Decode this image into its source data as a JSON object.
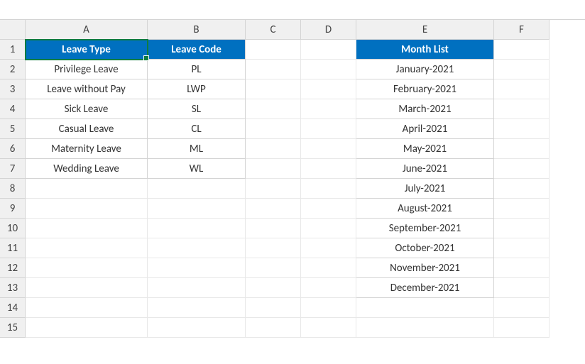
{
  "columns": [
    "A",
    "B",
    "C",
    "D",
    "E",
    "F"
  ],
  "rowCount": 15,
  "colors": {
    "headerBg": "#0070c0",
    "headerText": "#ffffff",
    "selectionBorder": "#107c41",
    "gridHeaderBg": "#f0f0f0",
    "gridBorder": "#d4d4d4",
    "cellBorder": "#e8e8e8"
  },
  "selectedCell": "A1",
  "headers": {
    "leaveType": "Leave Type",
    "leaveCode": "Leave Code",
    "monthList": "Month List"
  },
  "leaveTypes": [
    {
      "type": "Privilege Leave",
      "code": "PL"
    },
    {
      "type": "Leave without Pay",
      "code": "LWP"
    },
    {
      "type": "Sick Leave",
      "code": "SL"
    },
    {
      "type": "Casual Leave",
      "code": "CL"
    },
    {
      "type": "Maternity Leave",
      "code": "ML"
    },
    {
      "type": "Wedding Leave",
      "code": "WL"
    }
  ],
  "months": [
    "January-2021",
    "February-2021",
    "March-2021",
    "April-2021",
    "May-2021",
    "June-2021",
    "July-2021",
    "August-2021",
    "September-2021",
    "October-2021",
    "November-2021",
    "December-2021"
  ]
}
